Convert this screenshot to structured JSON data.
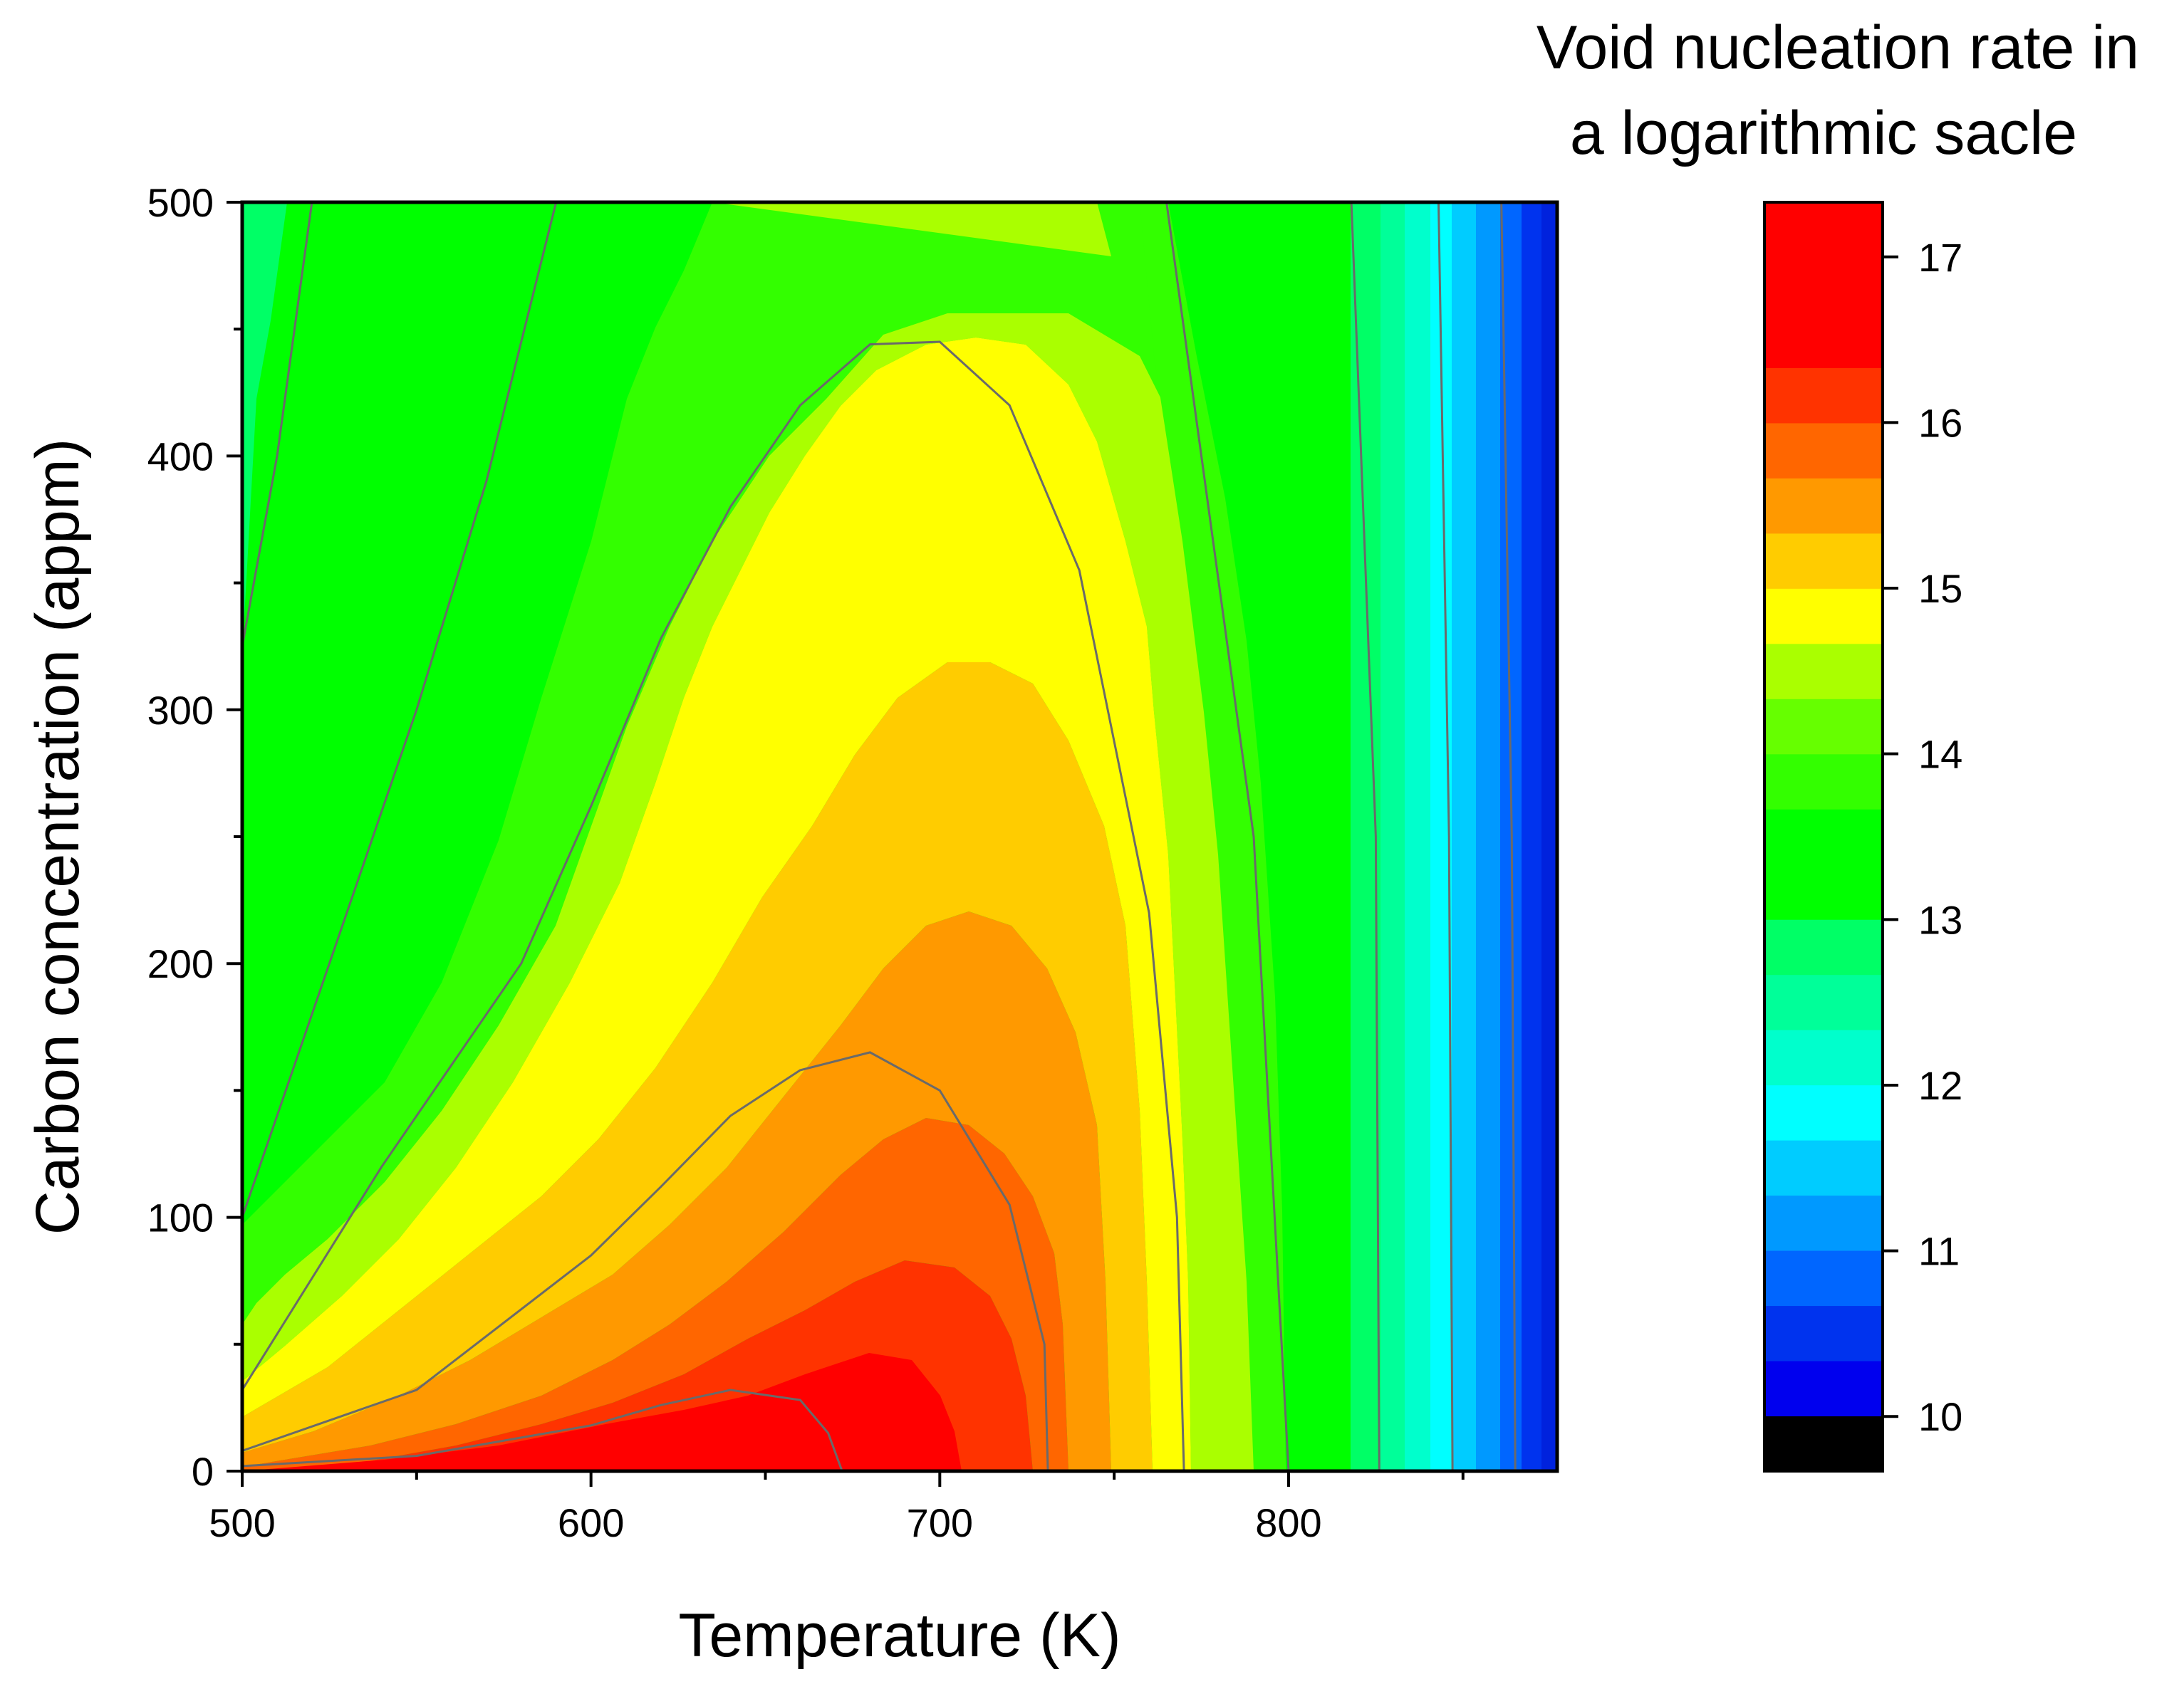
{
  "chart_data": {
    "type": "contour",
    "title": "",
    "xlabel": "Temperature (K)",
    "ylabel": "Carbon concentration (appm)",
    "xlim": [
      500,
      877
    ],
    "ylim": [
      0,
      500
    ],
    "x_ticks": [
      "500",
      "600",
      "700",
      "800"
    ],
    "y_ticks": [
      "0",
      "100",
      "200",
      "300",
      "400",
      "500"
    ],
    "colorbar": {
      "title_line1": "Void nucleation rate in",
      "title_line2": "a logarithmic sacle",
      "range": [
        9.67,
        17.33
      ],
      "ticks": [
        "10",
        "11",
        "12",
        "13",
        "14",
        "15",
        "16",
        "17"
      ],
      "level_step": 0.333,
      "levels_colors": [
        "#000000",
        "#0000ee",
        "#0033ee",
        "#0066ff",
        "#0099ff",
        "#00ccff",
        "#00ffff",
        "#00ffcc",
        "#00ff99",
        "#00ff66",
        "#00ff00",
        "#00ff00",
        "#33ff00",
        "#66ff00",
        "#aaff00",
        "#ffff00",
        "#ffcc00",
        "#ff9900",
        "#ff6600",
        "#ff3300",
        "#ff0000",
        "#ff0000",
        "#ff0000"
      ]
    },
    "contour_lines": [
      {
        "level": 17,
        "points": [
          [
            500,
            2
          ],
          [
            550,
            6
          ],
          [
            600,
            18
          ],
          [
            620,
            26
          ],
          [
            640,
            32
          ],
          [
            660,
            28
          ],
          [
            668,
            15
          ],
          [
            672,
            0
          ]
        ]
      },
      {
        "level": 16,
        "points": [
          [
            500,
            8
          ],
          [
            550,
            32
          ],
          [
            600,
            85
          ],
          [
            620,
            112
          ],
          [
            640,
            140
          ],
          [
            660,
            158
          ],
          [
            680,
            165
          ],
          [
            700,
            150
          ],
          [
            720,
            105
          ],
          [
            730,
            50
          ],
          [
            731,
            0
          ]
        ]
      },
      {
        "level": 15,
        "points": [
          [
            500,
            32
          ],
          [
            540,
            120
          ],
          [
            580,
            200
          ],
          [
            600,
            262
          ],
          [
            620,
            328
          ],
          [
            640,
            380
          ],
          [
            660,
            420
          ],
          [
            680,
            444
          ],
          [
            700,
            445
          ],
          [
            720,
            420
          ],
          [
            740,
            355
          ],
          [
            760,
            220
          ],
          [
            768,
            100
          ],
          [
            770,
            0
          ]
        ]
      },
      {
        "level": 14.33,
        "points": [
          [
            500,
            100
          ],
          [
            520,
            180
          ],
          [
            550,
            300
          ],
          [
            570,
            390
          ],
          [
            590,
            500
          ]
        ]
      },
      {
        "level": 13.67,
        "points": [
          [
            500,
            325
          ],
          [
            510,
            400
          ],
          [
            520,
            500
          ]
        ]
      },
      {
        "level": 14,
        "points": [
          [
            765,
            500
          ],
          [
            790,
            250
          ],
          [
            800,
            0
          ]
        ]
      },
      {
        "level": 13.33,
        "points": [
          [
            818,
            500
          ],
          [
            825,
            250
          ],
          [
            826,
            0
          ]
        ]
      },
      {
        "level": 12.67,
        "points": [
          [
            843,
            500
          ],
          [
            846,
            250
          ],
          [
            847,
            0
          ]
        ]
      },
      {
        "level": 12,
        "points": [
          [
            861,
            500
          ],
          [
            864,
            250
          ],
          [
            865,
            0
          ]
        ]
      }
    ]
  }
}
